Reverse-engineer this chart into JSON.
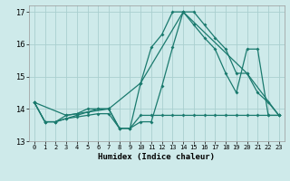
{
  "xlabel": "Humidex (Indice chaleur)",
  "background_color": "#ceeaea",
  "grid_color": "#aacfcf",
  "line_color": "#1a7a6e",
  "xlim": [
    -0.5,
    23.5
  ],
  "ylim": [
    13.0,
    17.2
  ],
  "xticks": [
    0,
    1,
    2,
    3,
    4,
    5,
    6,
    7,
    8,
    9,
    10,
    11,
    12,
    13,
    14,
    15,
    16,
    17,
    18,
    19,
    20,
    21,
    22,
    23
  ],
  "yticks": [
    13,
    14,
    15,
    16,
    17
  ],
  "line1_x": [
    0,
    1,
    2,
    3,
    4,
    5,
    6,
    7,
    8,
    9,
    10,
    11,
    12,
    13,
    14,
    15,
    16,
    17,
    18,
    19,
    20,
    21,
    22,
    23
  ],
  "line1_y": [
    14.2,
    13.6,
    13.6,
    13.8,
    13.85,
    14.0,
    14.0,
    14.0,
    13.4,
    13.4,
    13.6,
    13.6,
    14.7,
    15.9,
    17.0,
    17.0,
    16.6,
    16.2,
    15.85,
    15.1,
    15.1,
    14.5,
    14.2,
    13.8
  ],
  "line2_x": [
    0,
    1,
    2,
    3,
    4,
    5,
    6,
    7,
    8,
    9,
    10,
    11,
    12,
    13,
    14,
    15,
    16,
    17,
    18,
    19,
    20,
    21,
    22,
    23
  ],
  "line2_y": [
    14.2,
    13.6,
    13.6,
    13.7,
    13.8,
    13.9,
    14.0,
    14.0,
    13.4,
    13.4,
    14.8,
    15.9,
    16.3,
    17.0,
    17.0,
    16.6,
    16.2,
    15.85,
    15.1,
    14.5,
    15.85,
    15.85,
    13.8,
    13.8
  ],
  "line3_x": [
    0,
    1,
    2,
    3,
    4,
    5,
    6,
    7,
    8,
    9,
    10,
    11,
    12,
    13,
    14,
    15,
    16,
    17,
    18,
    19,
    20,
    21,
    22,
    23
  ],
  "line3_y": [
    14.2,
    13.6,
    13.6,
    13.7,
    13.75,
    13.8,
    13.85,
    13.85,
    13.4,
    13.4,
    13.8,
    13.8,
    13.8,
    13.8,
    13.8,
    13.8,
    13.8,
    13.8,
    13.8,
    13.8,
    13.8,
    13.8,
    13.8,
    13.8
  ],
  "line4_x": [
    0,
    3,
    7,
    10,
    14,
    20,
    23
  ],
  "line4_y": [
    14.2,
    13.8,
    14.0,
    14.8,
    17.0,
    15.1,
    13.8
  ]
}
